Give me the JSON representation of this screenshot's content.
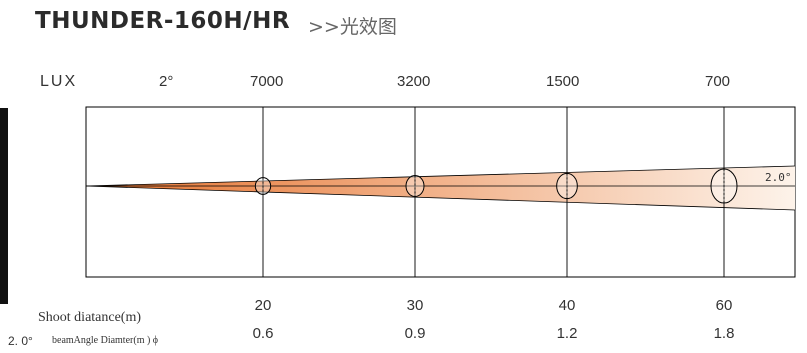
{
  "header": {
    "title": "THUNDER-160H/HR",
    "subtitle": ">>光效图"
  },
  "labels": {
    "lux": "LUX",
    "angle": "2°",
    "beam_angle_tag": "2.0°",
    "row_distance": "Shoot diatance(m)",
    "row_diameter_angle": "2. 0°",
    "row_diameter": "beamAngle Diamter(m ) ϕ"
  },
  "colors": {
    "beam_hot": "#e6722d",
    "beam_cool": "#fdf3ea",
    "frame": "#000000",
    "text": "#333333"
  },
  "chart_data": {
    "type": "beam-diagram",
    "beam_angle_deg": 2.0,
    "points": [
      {
        "lux": "7000",
        "distance": "20",
        "diameter": "0.6",
        "lux_value": 7000,
        "distance_m": 20,
        "diameter_m": 0.6
      },
      {
        "lux": "3200",
        "distance": "30",
        "diameter": "0.9",
        "lux_value": 3200,
        "distance_m": 30,
        "diameter_m": 0.9
      },
      {
        "lux": "1500",
        "distance": "40",
        "diameter": "1.2",
        "lux_value": 1500,
        "distance_m": 40,
        "diameter_m": 1.2
      },
      {
        "lux": "700",
        "distance": "60",
        "diameter": "1.8",
        "lux_value": 700,
        "distance_m": 60,
        "diameter_m": 1.8
      }
    ]
  }
}
